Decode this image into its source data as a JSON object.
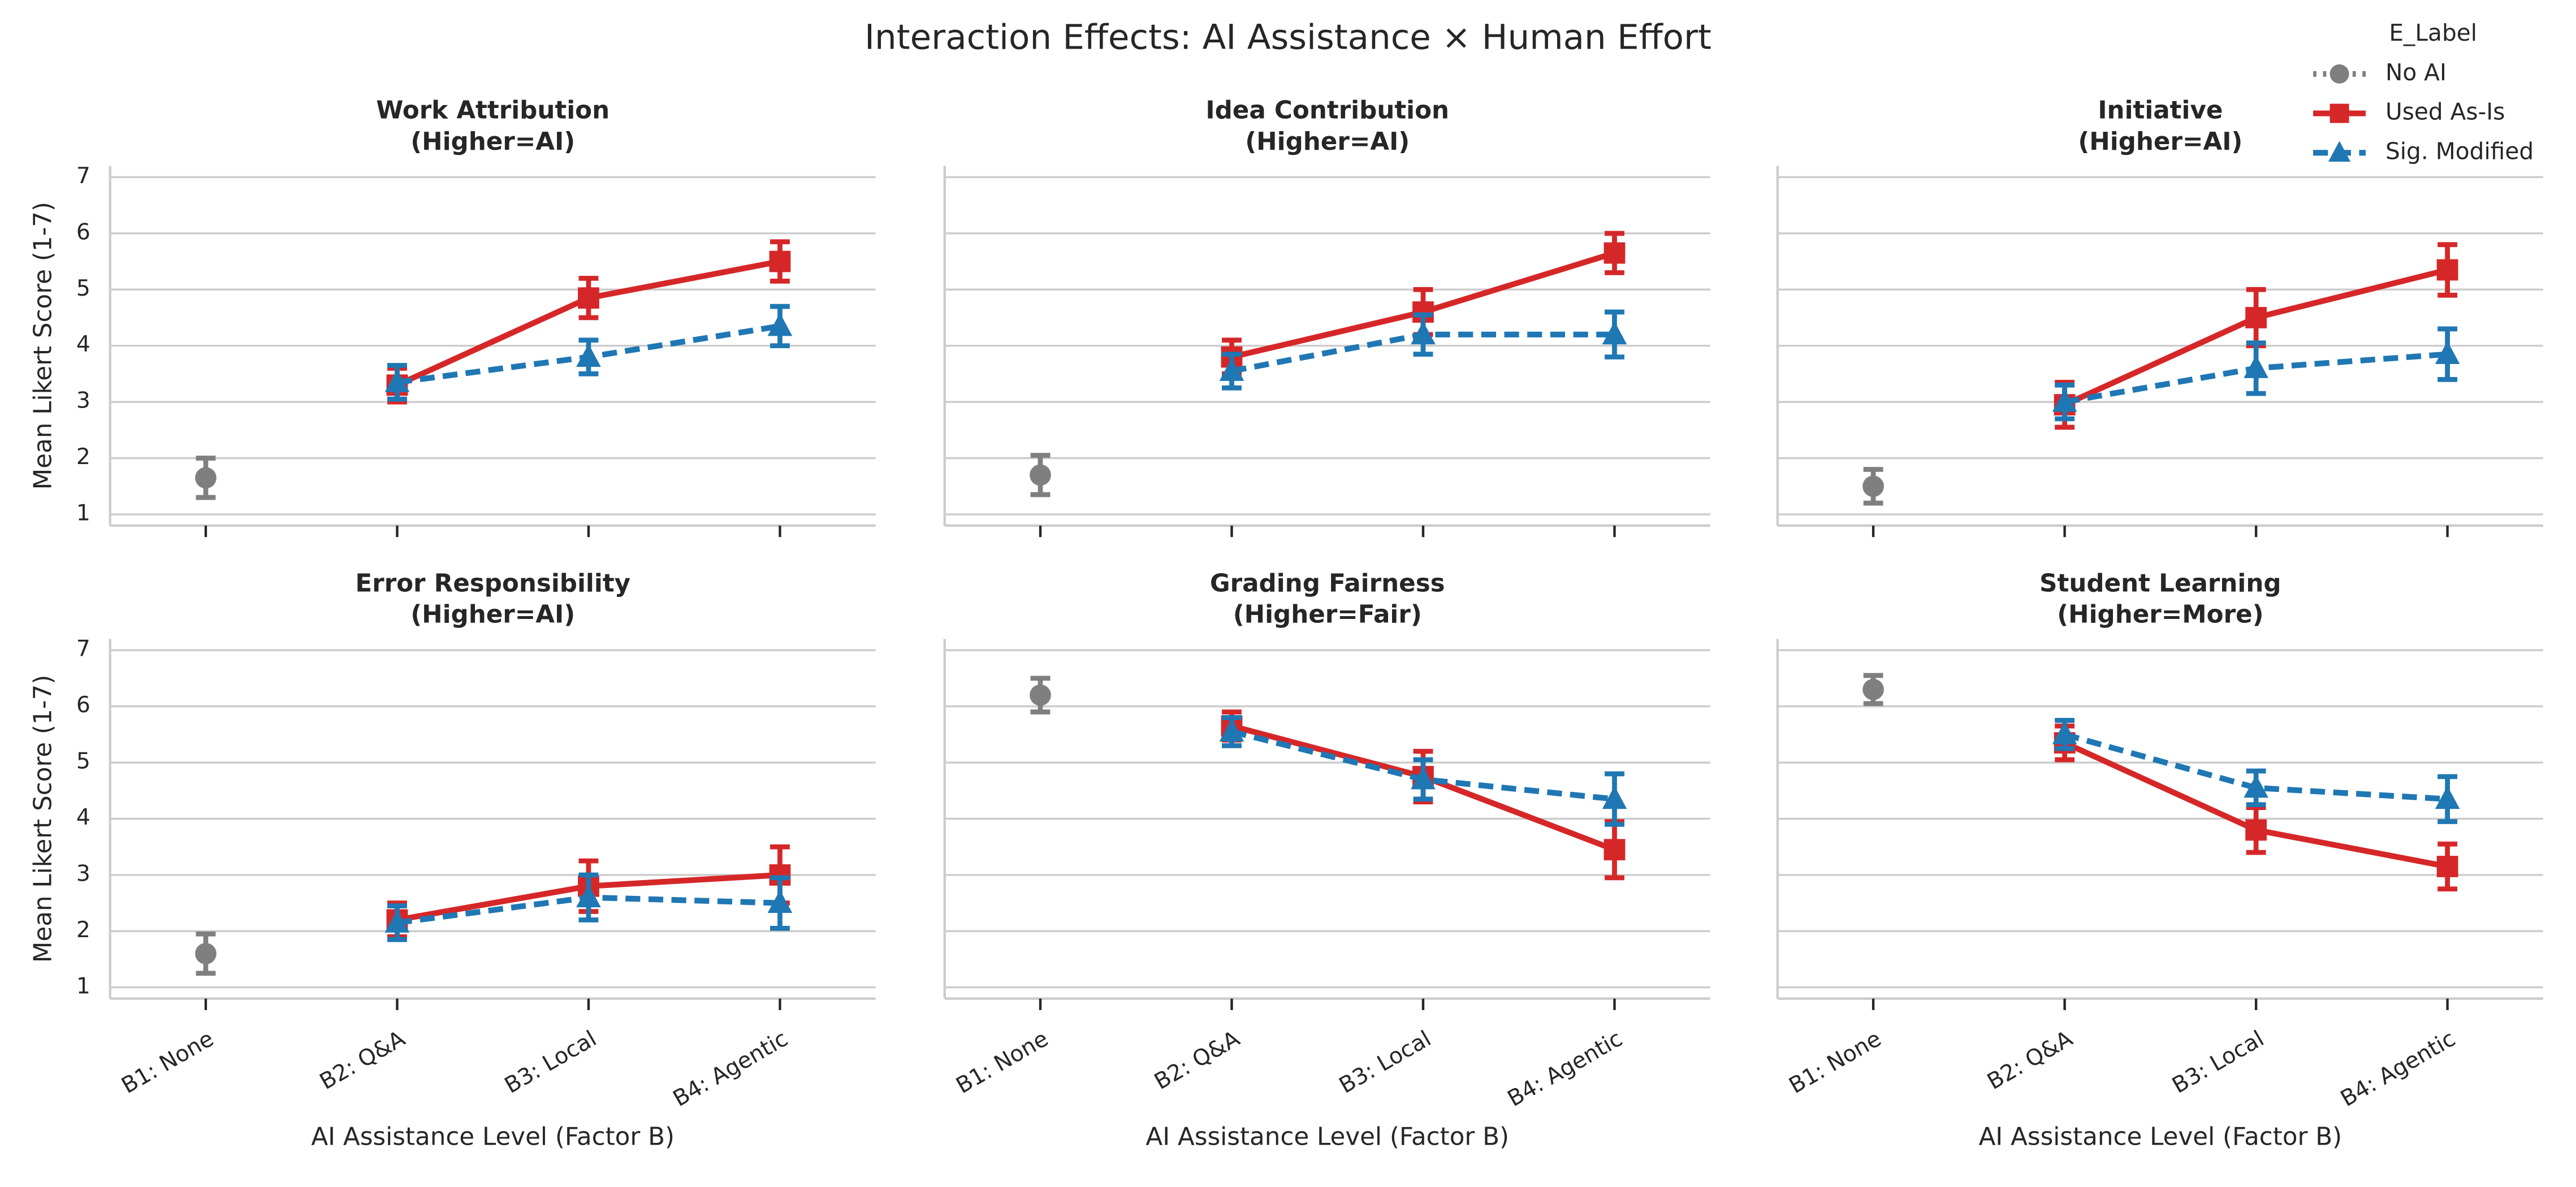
{
  "title": "Interaction Effects: AI Assistance × Human Effort",
  "legend": {
    "title": "E_Label",
    "loc": "upper right"
  },
  "chart_data": [
    {
      "type": "line",
      "title": "Work Attribution",
      "subtitle": "(Higher=AI)",
      "ylabel": "Mean Likert Score (1-7)",
      "categories": [
        "B1: None",
        "B2: Q&A",
        "B3: Local",
        "B4: Agentic"
      ],
      "ylim": [
        0.8,
        7.2
      ],
      "yticks": [
        1,
        2,
        3,
        4,
        5,
        6,
        7
      ],
      "grid": true,
      "series": [
        {
          "name": "No AI",
          "color": "#7f7f7f",
          "marker": "o",
          "linestyle": "dotted",
          "values": [
            1.65,
            null,
            null,
            null
          ],
          "errors": [
            0.35,
            null,
            null,
            null
          ]
        },
        {
          "name": "Used As-Is",
          "color": "#d62728",
          "marker": "s",
          "linestyle": "solid",
          "values": [
            null,
            3.3,
            4.85,
            5.5
          ],
          "errors": [
            null,
            0.3,
            0.35,
            0.35
          ]
        },
        {
          "name": "Sig. Modified",
          "color": "#1f77b4",
          "marker": "^",
          "linestyle": "dashed",
          "values": [
            null,
            3.35,
            3.8,
            4.35
          ],
          "errors": [
            null,
            0.3,
            0.3,
            0.35
          ]
        }
      ]
    },
    {
      "type": "line",
      "title": "Idea Contribution",
      "subtitle": "(Higher=AI)",
      "categories": [
        "B1: None",
        "B2: Q&A",
        "B3: Local",
        "B4: Agentic"
      ],
      "ylim": [
        0.8,
        7.2
      ],
      "yticks": [
        1,
        2,
        3,
        4,
        5,
        6,
        7
      ],
      "grid": true,
      "series": [
        {
          "name": "No AI",
          "color": "#7f7f7f",
          "marker": "o",
          "linestyle": "dotted",
          "values": [
            1.7,
            null,
            null,
            null
          ],
          "errors": [
            0.35,
            null,
            null,
            null
          ]
        },
        {
          "name": "Used As-Is",
          "color": "#d62728",
          "marker": "s",
          "linestyle": "solid",
          "values": [
            null,
            3.8,
            4.6,
            5.65
          ],
          "errors": [
            null,
            0.3,
            0.4,
            0.35
          ]
        },
        {
          "name": "Sig. Modified",
          "color": "#1f77b4",
          "marker": "^",
          "linestyle": "dashed",
          "values": [
            null,
            3.55,
            4.2,
            4.2
          ],
          "errors": [
            null,
            0.3,
            0.35,
            0.4
          ]
        }
      ]
    },
    {
      "type": "line",
      "title": "Initiative",
      "subtitle": "(Higher=AI)",
      "categories": [
        "B1: None",
        "B2: Q&A",
        "B3: Local",
        "B4: Agentic"
      ],
      "ylim": [
        0.8,
        7.2
      ],
      "yticks": [
        1,
        2,
        3,
        4,
        5,
        6,
        7
      ],
      "grid": true,
      "series": [
        {
          "name": "No AI",
          "color": "#7f7f7f",
          "marker": "o",
          "linestyle": "dotted",
          "values": [
            1.5,
            null,
            null,
            null
          ],
          "errors": [
            0.3,
            null,
            null,
            null
          ]
        },
        {
          "name": "Used As-Is",
          "color": "#d62728",
          "marker": "s",
          "linestyle": "solid",
          "values": [
            null,
            2.95,
            4.5,
            5.35
          ],
          "errors": [
            null,
            0.4,
            0.5,
            0.45
          ]
        },
        {
          "name": "Sig. Modified",
          "color": "#1f77b4",
          "marker": "^",
          "linestyle": "dashed",
          "values": [
            null,
            3.0,
            3.6,
            3.85
          ],
          "errors": [
            null,
            0.3,
            0.45,
            0.45
          ]
        }
      ]
    },
    {
      "type": "line",
      "title": "Error Responsibility",
      "subtitle": "(Higher=AI)",
      "ylabel": "Mean Likert Score (1-7)",
      "xlabel": "AI Assistance Level (Factor B)",
      "categories": [
        "B1: None",
        "B2: Q&A",
        "B3: Local",
        "B4: Agentic"
      ],
      "ylim": [
        0.8,
        7.2
      ],
      "yticks": [
        1,
        2,
        3,
        4,
        5,
        6,
        7
      ],
      "grid": true,
      "series": [
        {
          "name": "No AI",
          "color": "#7f7f7f",
          "marker": "o",
          "linestyle": "dotted",
          "values": [
            1.6,
            null,
            null,
            null
          ],
          "errors": [
            0.35,
            null,
            null,
            null
          ]
        },
        {
          "name": "Used As-Is",
          "color": "#d62728",
          "marker": "s",
          "linestyle": "solid",
          "values": [
            null,
            2.2,
            2.8,
            3.0
          ],
          "errors": [
            null,
            0.3,
            0.45,
            0.5
          ]
        },
        {
          "name": "Sig. Modified",
          "color": "#1f77b4",
          "marker": "^",
          "linestyle": "dashed",
          "values": [
            null,
            2.15,
            2.6,
            2.5
          ],
          "errors": [
            null,
            0.3,
            0.4,
            0.45
          ]
        }
      ]
    },
    {
      "type": "line",
      "title": "Grading Fairness",
      "subtitle": "(Higher=Fair)",
      "xlabel": "AI Assistance Level (Factor B)",
      "categories": [
        "B1: None",
        "B2: Q&A",
        "B3: Local",
        "B4: Agentic"
      ],
      "ylim": [
        0.8,
        7.2
      ],
      "yticks": [
        1,
        2,
        3,
        4,
        5,
        6,
        7
      ],
      "grid": true,
      "series": [
        {
          "name": "No AI",
          "color": "#7f7f7f",
          "marker": "o",
          "linestyle": "dotted",
          "values": [
            6.2,
            null,
            null,
            null
          ],
          "errors": [
            0.3,
            null,
            null,
            null
          ]
        },
        {
          "name": "Used As-Is",
          "color": "#d62728",
          "marker": "s",
          "linestyle": "solid",
          "values": [
            null,
            5.65,
            4.75,
            3.45
          ],
          "errors": [
            null,
            0.25,
            0.45,
            0.5
          ]
        },
        {
          "name": "Sig. Modified",
          "color": "#1f77b4",
          "marker": "^",
          "linestyle": "dashed",
          "values": [
            null,
            5.55,
            4.7,
            4.35
          ],
          "errors": [
            null,
            0.25,
            0.35,
            0.45
          ]
        }
      ]
    },
    {
      "type": "line",
      "title": "Student Learning",
      "subtitle": "(Higher=More)",
      "xlabel": "AI Assistance Level (Factor B)",
      "categories": [
        "B1: None",
        "B2: Q&A",
        "B3: Local",
        "B4: Agentic"
      ],
      "ylim": [
        0.8,
        7.2
      ],
      "yticks": [
        1,
        2,
        3,
        4,
        5,
        6,
        7
      ],
      "grid": true,
      "series": [
        {
          "name": "No AI",
          "color": "#7f7f7f",
          "marker": "o",
          "linestyle": "dotted",
          "values": [
            6.3,
            null,
            null,
            null
          ],
          "errors": [
            0.25,
            null,
            null,
            null
          ]
        },
        {
          "name": "Used As-Is",
          "color": "#d62728",
          "marker": "s",
          "linestyle": "solid",
          "values": [
            null,
            5.35,
            3.8,
            3.15
          ],
          "errors": [
            null,
            0.3,
            0.4,
            0.4
          ]
        },
        {
          "name": "Sig. Modified",
          "color": "#1f77b4",
          "marker": "^",
          "linestyle": "dashed",
          "values": [
            null,
            5.5,
            4.55,
            4.35
          ],
          "errors": [
            null,
            0.25,
            0.3,
            0.4
          ]
        }
      ]
    }
  ]
}
